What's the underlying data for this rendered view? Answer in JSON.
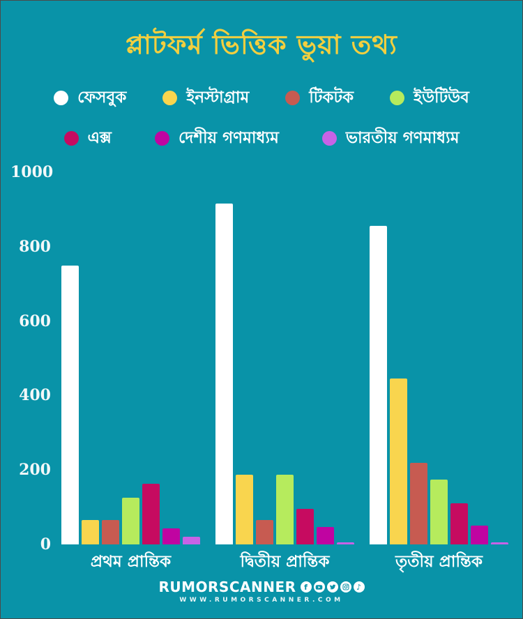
{
  "title": "প্লাটফর্ম ভিত্তিক ভুয়া তথ্য",
  "colors": {
    "background": "#0993A8",
    "title": "#F3CF3F",
    "text": "#FFFFFF",
    "facebook": "#FFFFFF",
    "instagram": "#F9D54E",
    "tiktok": "#C75B51",
    "youtube": "#B6EB5D",
    "x": "#C60B60",
    "domestic_media": "#C004A1",
    "indian_media": "#C763E6"
  },
  "legend": {
    "rows": [
      [
        {
          "label": "ফেসবুক",
          "color": "#FFFFFF"
        },
        {
          "label": "ইনস্টাগ্রাম",
          "color": "#F9D54E"
        },
        {
          "label": "টিকটক",
          "color": "#C75B51"
        },
        {
          "label": "ইউটিউব",
          "color": "#B6EB5D"
        }
      ],
      [
        {
          "label": "এক্স",
          "color": "#C60B60"
        },
        {
          "label": "দেশীয় গণমাধ্যম",
          "color": "#C004A1"
        },
        {
          "label": "ভারতীয় গণমাধ্যম",
          "color": "#C763E6"
        }
      ]
    ]
  },
  "chart_data": {
    "type": "bar",
    "title": "প্লাটফর্ম ভিত্তিক ভুয়া তথ্য",
    "categories": [
      "প্রথম প্রান্তিক",
      "দ্বিতীয় প্রান্তিক",
      "তৃতীয় প্রান্তিক"
    ],
    "series": [
      {
        "name": "ফেসবুক",
        "color": "#FFFFFF",
        "values": [
          750,
          915,
          855
        ]
      },
      {
        "name": "ইনস্টাগ্রাম",
        "color": "#F9D54E",
        "values": [
          65,
          187,
          445
        ]
      },
      {
        "name": "টিকটক",
        "color": "#C75B51",
        "values": [
          65,
          65,
          220
        ]
      },
      {
        "name": "ইউটিউব",
        "color": "#B6EB5D",
        "values": [
          125,
          187,
          175
        ]
      },
      {
        "name": "এক্স",
        "color": "#C60B60",
        "values": [
          163,
          96,
          110
        ]
      },
      {
        "name": "দেশীয় গণমাধ্যম",
        "color": "#C004A1",
        "values": [
          43,
          47,
          50
        ]
      },
      {
        "name": "ভারতীয় গণমাধ্যম",
        "color": "#C763E6",
        "values": [
          20,
          5,
          5
        ]
      }
    ],
    "xlabel": "",
    "ylabel": "",
    "ylim": [
      0,
      1000
    ],
    "yticks": [
      0,
      200,
      400,
      600,
      800,
      1000
    ],
    "grid": false,
    "legend_position": "top"
  },
  "footer": {
    "brand": "RUMORSCANNER",
    "website": "WWW.RUMORSCANNER.COM",
    "icons": [
      "facebook-icon",
      "youtube-icon",
      "twitter-icon",
      "instagram-icon",
      "tiktok-icon"
    ],
    "tiktok_glyph": "♪",
    "facebook_glyph": "f"
  }
}
